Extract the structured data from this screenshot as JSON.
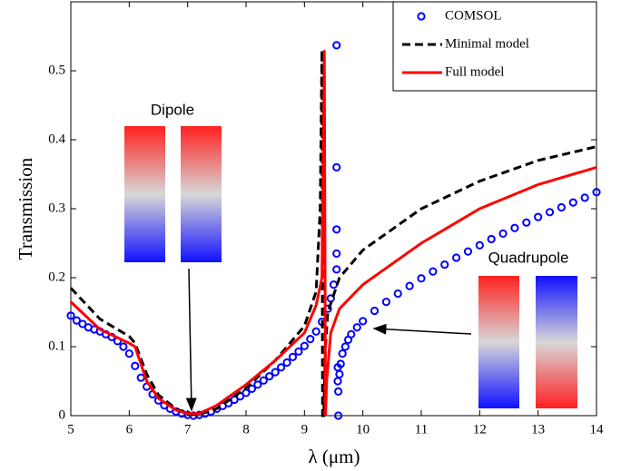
{
  "chart_data": {
    "type": "line",
    "xlabel": "λ (μm)",
    "ylabel": "Transmission",
    "xlim": [
      5,
      14
    ],
    "xticks": [
      5,
      6,
      7,
      8,
      9,
      10,
      11,
      12,
      13,
      14
    ],
    "ylim": [
      0,
      0.6
    ],
    "yticks": [
      0,
      0.1,
      0.2,
      0.3,
      0.4,
      0.5
    ],
    "legend": "upper right",
    "annotations": [
      "Dipole",
      "Quadrupole"
    ],
    "series": [
      {
        "name": "COMSOL",
        "color": "#0000ff",
        "style": "marker",
        "x": [
          5.0,
          5.1,
          5.2,
          5.3,
          5.4,
          5.5,
          5.6,
          5.7,
          5.8,
          5.9,
          6.0,
          6.1,
          6.2,
          6.3,
          6.4,
          6.5,
          6.6,
          6.7,
          6.8,
          6.9,
          7.0,
          7.1,
          7.2,
          7.3,
          7.4,
          7.5,
          7.6,
          7.7,
          7.8,
          7.9,
          8.0,
          8.1,
          8.2,
          8.3,
          8.4,
          8.5,
          8.6,
          8.7,
          8.8,
          8.9,
          9.0,
          9.1,
          9.2,
          9.3,
          9.4,
          9.45,
          9.5,
          9.55,
          9.55,
          9.55,
          9.55,
          9.55,
          9.57,
          9.57,
          9.58,
          9.58,
          9.6,
          9.62,
          9.65,
          9.7,
          9.75,
          9.8,
          9.9,
          10.0,
          10.2,
          10.4,
          10.6,
          10.8,
          11.0,
          11.2,
          11.4,
          11.6,
          11.8,
          12.0,
          12.2,
          12.4,
          12.6,
          12.8,
          13.0,
          13.2,
          13.4,
          13.6,
          13.8,
          14.0
        ],
        "values": [
          0.145,
          0.138,
          0.133,
          0.128,
          0.125,
          0.122,
          0.118,
          0.114,
          0.108,
          0.1,
          0.09,
          0.072,
          0.055,
          0.042,
          0.031,
          0.022,
          0.015,
          0.01,
          0.006,
          0.003,
          0.001,
          0,
          0.001,
          0.003,
          0.006,
          0.01,
          0.014,
          0.018,
          0.023,
          0.028,
          0.033,
          0.039,
          0.045,
          0.051,
          0.057,
          0.063,
          0.07,
          0.077,
          0.085,
          0.093,
          0.101,
          0.111,
          0.122,
          0.136,
          0.155,
          0.17,
          0.19,
          0.537,
          0.36,
          0.27,
          0.235,
          0.212,
          0.07,
          0.05,
          0.035,
          0,
          0.06,
          0.075,
          0.09,
          0.1,
          0.11,
          0.118,
          0.128,
          0.137,
          0.152,
          0.165,
          0.177,
          0.188,
          0.199,
          0.209,
          0.219,
          0.229,
          0.238,
          0.247,
          0.256,
          0.264,
          0.272,
          0.28,
          0.288,
          0.295,
          0.302,
          0.309,
          0.316,
          0.324
        ]
      },
      {
        "name": "Minimal model",
        "color": "#000000",
        "style": "dashed",
        "x": [
          5,
          5.5,
          6.0,
          6.1,
          6.3,
          6.5,
          6.8,
          7.0,
          7.2,
          7.5,
          8.0,
          8.5,
          9.0,
          9.2,
          9.27,
          9.3,
          9.31,
          9.33,
          9.36,
          9.4,
          9.6,
          10,
          10.5,
          11,
          12,
          13,
          14
        ],
        "values": [
          0.185,
          0.14,
          0.115,
          0.105,
          0.06,
          0.03,
          0.01,
          0.003,
          0.002,
          0.01,
          0.04,
          0.08,
          0.13,
          0.18,
          0.3,
          0.53,
          0,
          0,
          0.1,
          0.15,
          0.2,
          0.24,
          0.27,
          0.3,
          0.34,
          0.37,
          0.39
        ]
      },
      {
        "name": "Full model",
        "color": "#ff0000",
        "style": "solid",
        "x": [
          5,
          5.5,
          6.0,
          6.1,
          6.3,
          6.5,
          6.8,
          7.0,
          7.2,
          7.5,
          8.0,
          8.5,
          9.0,
          9.2,
          9.3,
          9.34,
          9.36,
          9.38,
          9.45,
          9.6,
          10,
          10.5,
          11,
          12,
          13,
          14
        ],
        "values": [
          0.165,
          0.125,
          0.105,
          0.1,
          0.05,
          0.025,
          0.008,
          0.003,
          0.003,
          0.015,
          0.045,
          0.08,
          0.12,
          0.16,
          0.2,
          0.53,
          0,
          0.05,
          0.12,
          0.155,
          0.19,
          0.22,
          0.25,
          0.3,
          0.335,
          0.36
        ]
      }
    ]
  }
}
